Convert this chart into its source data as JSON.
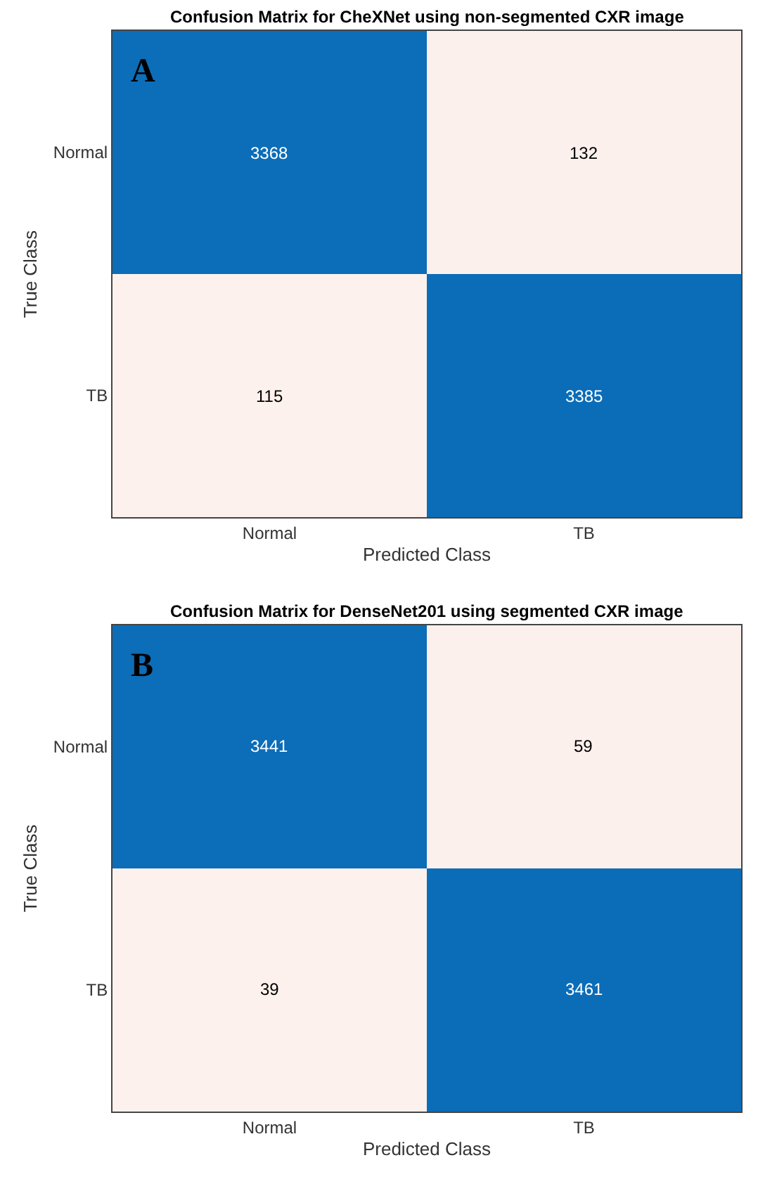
{
  "chart_data": [
    {
      "type": "heatmap",
      "title": "Confusion Matrix for CheXNet using non-segmented CXR image",
      "xlabel": "Predicted Class",
      "ylabel": "True Class",
      "categories": [
        "Normal",
        "TB"
      ],
      "y_categories": [
        "Normal",
        "TB"
      ],
      "cells": [
        [
          3368,
          132
        ],
        [
          115,
          3385
        ]
      ],
      "colors": [
        "#fdf1ed",
        "#0b6cb8"
      ],
      "data_labels": true,
      "annotations": [
        "A"
      ]
    },
    {
      "type": "heatmap",
      "title": "Confusion Matrix for DenseNet201 using segmented CXR image",
      "xlabel": "Predicted Class",
      "ylabel": "True Class",
      "categories": [
        "Normal",
        "TB"
      ],
      "y_categories": [
        "Normal",
        "TB"
      ],
      "cells": [
        [
          3441,
          59
        ],
        [
          39,
          3461
        ]
      ],
      "colors": [
        "#fdf1ed",
        "#0b6cb8"
      ],
      "data_labels": true,
      "annotations": [
        "B"
      ]
    }
  ]
}
